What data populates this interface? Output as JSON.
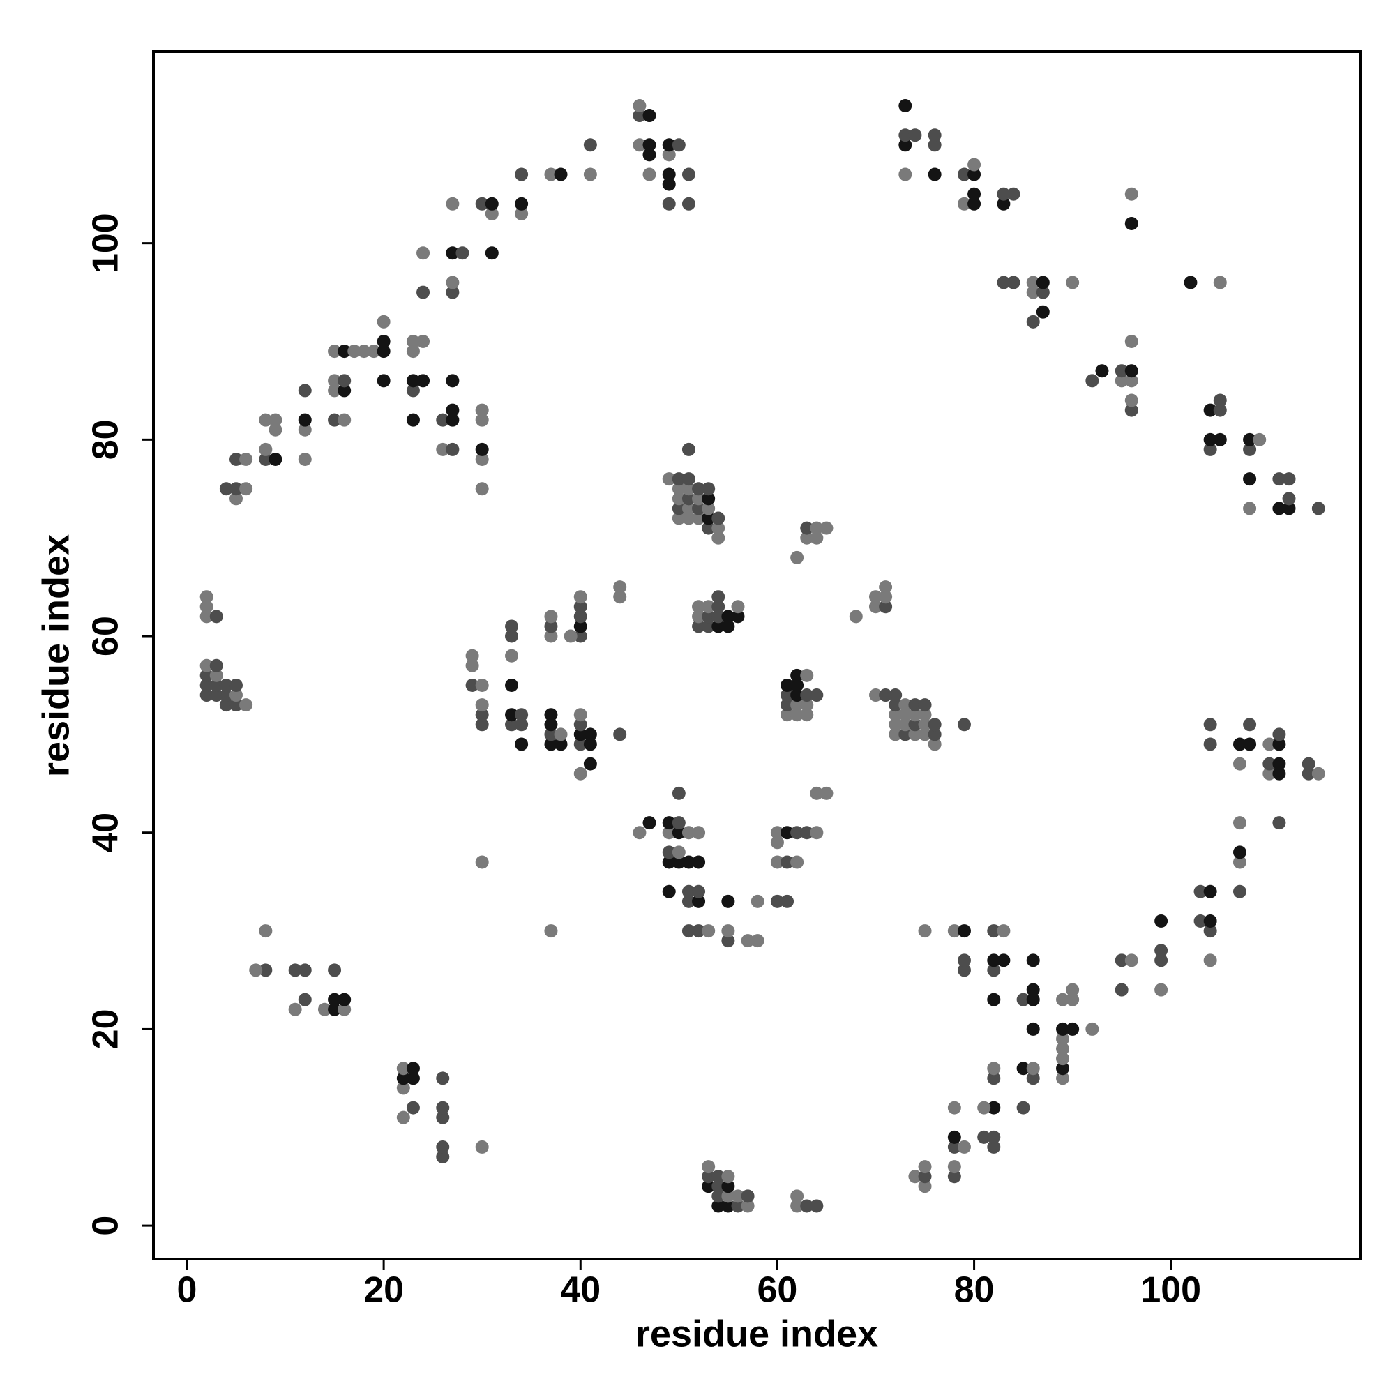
{
  "chart_data": {
    "type": "scatter",
    "xlabel": "residue index",
    "ylabel": "residue index",
    "xlim": [
      -3.4,
      119.3
    ],
    "ylim": [
      -3.4,
      119.5
    ],
    "xticks": [
      0,
      20,
      40,
      60,
      80,
      100
    ],
    "yticks": [
      0,
      20,
      40,
      60,
      80,
      100
    ],
    "x": [
      4,
      5,
      5,
      5,
      6,
      6,
      8,
      8,
      8,
      9,
      9,
      9,
      12,
      12,
      12,
      12,
      15,
      15,
      15,
      15,
      16,
      16,
      16,
      16,
      17,
      18,
      19,
      20,
      20,
      20,
      20,
      23,
      23,
      23,
      23,
      23,
      24,
      24,
      24,
      24,
      26,
      26,
      27,
      27,
      27,
      27,
      27,
      27,
      27,
      27,
      28,
      30,
      30,
      30,
      30,
      30,
      30,
      31,
      31,
      31,
      34,
      34,
      34,
      37,
      38,
      41,
      41,
      46,
      46,
      46,
      47,
      47,
      47,
      47,
      49,
      49,
      49,
      49,
      49,
      50,
      51,
      51,
      73,
      73,
      73,
      73,
      74,
      76,
      76,
      76,
      79,
      79,
      80,
      80,
      80,
      80,
      83,
      83,
      84,
      83,
      84,
      86,
      86,
      86,
      87,
      87,
      87,
      90,
      96,
      96,
      92,
      93,
      95,
      95,
      96,
      96,
      96,
      96,
      96,
      102,
      105,
      104,
      104,
      104,
      105,
      105,
      105,
      108,
      108,
      108,
      108,
      109,
      111,
      111,
      112,
      112,
      112,
      115,
      2,
      2,
      2,
      2,
      2,
      2,
      2,
      3,
      3,
      3,
      3,
      3,
      4,
      4,
      4,
      5,
      5,
      5,
      6,
      29,
      29,
      29,
      30,
      30,
      30,
      30,
      30,
      33,
      33,
      33,
      33,
      33,
      33,
      34,
      34,
      34,
      37,
      37,
      37,
      37,
      37,
      37,
      37,
      38,
      38,
      40,
      40,
      40,
      40,
      40,
      40,
      40,
      40,
      40,
      40,
      39,
      41,
      41,
      41,
      44,
      44,
      44,
      37,
      49,
      50,
      50,
      50,
      50,
      50,
      51,
      51,
      51,
      51,
      51,
      51,
      52,
      52,
      52,
      52,
      53,
      53,
      53,
      53,
      53,
      54,
      54,
      54,
      52,
      52,
      52,
      53,
      53,
      53,
      54,
      54,
      54,
      54,
      55,
      55,
      56,
      56,
      62,
      63,
      63,
      64,
      64,
      65,
      68,
      70,
      70,
      71,
      71,
      71,
      61,
      61,
      61,
      61,
      62,
      62,
      62,
      62,
      62,
      63,
      63,
      63,
      63,
      64,
      70,
      71,
      72,
      72,
      72,
      72,
      72,
      73,
      73,
      73,
      73,
      74,
      74,
      74,
      74,
      75,
      75,
      75,
      75,
      76,
      76,
      76,
      79,
      64,
      65,
      46,
      47,
      49,
      49,
      49,
      49,
      49,
      50,
      50,
      50,
      50,
      50,
      51,
      51,
      51,
      51,
      51,
      52,
      52,
      52,
      52,
      52,
      53,
      55,
      55,
      55,
      57,
      58,
      58,
      60,
      60,
      60,
      60,
      61,
      61,
      61,
      62,
      62,
      63,
      64,
      75,
      78,
      79,
      79,
      79,
      82,
      82,
      82,
      82,
      83,
      83,
      85,
      86,
      86,
      86,
      86,
      89,
      89,
      89,
      89,
      89,
      89,
      89,
      90,
      90,
      90,
      92,
      85,
      85,
      86,
      86,
      82,
      82,
      82,
      81,
      81,
      82,
      82,
      78,
      78,
      78,
      79,
      78,
      78,
      74,
      75,
      75,
      75,
      95,
      95,
      96,
      99,
      99,
      99,
      99,
      103,
      103,
      104,
      104,
      104,
      104,
      107,
      107,
      107,
      107,
      104,
      104,
      107,
      107,
      108,
      108,
      110,
      110,
      110,
      111,
      111,
      111,
      111,
      111,
      114,
      114,
      115,
      8,
      8,
      7,
      11,
      11,
      12,
      12,
      14,
      15,
      15,
      15,
      16,
      16,
      22,
      22,
      22,
      22,
      23,
      23,
      23,
      26,
      26,
      26,
      26,
      26,
      30,
      53,
      53,
      53,
      54,
      54,
      54,
      54,
      55,
      55,
      55,
      55,
      56,
      56,
      57,
      57,
      62,
      62,
      63,
      64
    ],
    "values": [
      75,
      74,
      75,
      78,
      75,
      78,
      78,
      79,
      82,
      78,
      81,
      82,
      78,
      81,
      82,
      85,
      82,
      85,
      86,
      89,
      82,
      85,
      86,
      89,
      89,
      89,
      89,
      86,
      89,
      90,
      92,
      82,
      85,
      86,
      89,
      90,
      86,
      90,
      95,
      99,
      79,
      82,
      79,
      82,
      83,
      86,
      95,
      96,
      99,
      104,
      99,
      75,
      78,
      79,
      82,
      83,
      104,
      99,
      103,
      104,
      103,
      104,
      107,
      107,
      107,
      107,
      110,
      110,
      113,
      114,
      107,
      109,
      110,
      113,
      104,
      106,
      107,
      109,
      110,
      110,
      104,
      107,
      107,
      110,
      111,
      114,
      111,
      107,
      110,
      111,
      104,
      107,
      104,
      105,
      107,
      108,
      104,
      105,
      105,
      96,
      96,
      92,
      95,
      96,
      93,
      95,
      96,
      96,
      102,
      105,
      86,
      87,
      86,
      87,
      83,
      84,
      86,
      87,
      90,
      96,
      96,
      79,
      80,
      83,
      80,
      83,
      84,
      73,
      76,
      79,
      80,
      80,
      73,
      76,
      73,
      74,
      76,
      73,
      54,
      55,
      56,
      57,
      62,
      63,
      64,
      54,
      55,
      56,
      57,
      62,
      53,
      54,
      55,
      53,
      54,
      55,
      53,
      55,
      57,
      58,
      51,
      52,
      53,
      55,
      37,
      51,
      52,
      55,
      58,
      60,
      61,
      49,
      51,
      52,
      49,
      50,
      51,
      52,
      60,
      61,
      62,
      49,
      50,
      46,
      49,
      50,
      51,
      52,
      60,
      61,
      62,
      63,
      64,
      60,
      47,
      49,
      50,
      50,
      64,
      65,
      30,
      76,
      72,
      73,
      74,
      75,
      76,
      72,
      73,
      74,
      75,
      76,
      79,
      72,
      73,
      74,
      75,
      71,
      72,
      73,
      74,
      75,
      70,
      71,
      72,
      61,
      62,
      63,
      61,
      62,
      63,
      61,
      62,
      63,
      64,
      61,
      62,
      62,
      63,
      68,
      70,
      71,
      70,
      71,
      71,
      62,
      63,
      64,
      63,
      64,
      65,
      52,
      53,
      54,
      55,
      52,
      53,
      54,
      55,
      56,
      52,
      53,
      54,
      56,
      54,
      54,
      54,
      50,
      51,
      52,
      53,
      54,
      50,
      51,
      52,
      53,
      50,
      51,
      52,
      53,
      50,
      51,
      52,
      53,
      49,
      50,
      51,
      51,
      44,
      44,
      40,
      41,
      34,
      37,
      38,
      40,
      41,
      37,
      38,
      40,
      41,
      44,
      33,
      34,
      37,
      40,
      30,
      30,
      33,
      34,
      37,
      40,
      30,
      29,
      30,
      33,
      29,
      29,
      33,
      33,
      37,
      39,
      40,
      33,
      37,
      40,
      37,
      40,
      40,
      40,
      30,
      30,
      30,
      26,
      27,
      23,
      26,
      27,
      30,
      27,
      30,
      23,
      20,
      23,
      24,
      27,
      15,
      16,
      17,
      18,
      19,
      20,
      23,
      20,
      23,
      24,
      20,
      12,
      16,
      15,
      16,
      12,
      15,
      16,
      9,
      12,
      8,
      9,
      12,
      8,
      9,
      8,
      5,
      6,
      5,
      4,
      5,
      6,
      24,
      27,
      27,
      24,
      27,
      28,
      31,
      31,
      34,
      27,
      30,
      31,
      34,
      34,
      37,
      38,
      41,
      49,
      51,
      47,
      49,
      49,
      51,
      46,
      47,
      49,
      41,
      46,
      47,
      49,
      50,
      46,
      47,
      46,
      26,
      30,
      26,
      22,
      26,
      23,
      26,
      22,
      22,
      23,
      26,
      22,
      23,
      11,
      14,
      15,
      16,
      12,
      15,
      16,
      7,
      8,
      11,
      12,
      15,
      8,
      4,
      5,
      6,
      2,
      3,
      4,
      5,
      2,
      3,
      4,
      5,
      2,
      3,
      2,
      3,
      2,
      3,
      2,
      2
    ],
    "colors": [
      "#4d4d4d",
      "#7a7a7a",
      "#4d4d4d",
      "#4d4d4d",
      "#7a7a7a",
      "#7a7a7a",
      "#4d4d4d",
      "#7a7a7a",
      "#7a7a7a",
      "#141414",
      "#7a7a7a",
      "#7a7a7a",
      "#7a7a7a",
      "#7a7a7a",
      "#141414",
      "#4d4d4d",
      "#4d4d4d",
      "#7a7a7a",
      "#7a7a7a",
      "#7a7a7a",
      "#7a7a7a",
      "#141414",
      "#4d4d4d",
      "#141414",
      "#7a7a7a",
      "#7a7a7a",
      "#7a7a7a",
      "#141414",
      "#141414",
      "#141414",
      "#7a7a7a",
      "#141414",
      "#4d4d4d",
      "#141414",
      "#7a7a7a",
      "#7a7a7a",
      "#141414",
      "#7a7a7a",
      "#4d4d4d",
      "#7a7a7a",
      "#7a7a7a",
      "#4d4d4d",
      "#4d4d4d",
      "#141414",
      "#141414",
      "#141414",
      "#4d4d4d",
      "#7a7a7a",
      "#141414",
      "#7a7a7a",
      "#4d4d4d",
      "#7a7a7a",
      "#7a7a7a",
      "#141414",
      "#7a7a7a",
      "#7a7a7a",
      "#4d4d4d",
      "#141414",
      "#7a7a7a",
      "#141414",
      "#7a7a7a",
      "#141414",
      "#4d4d4d",
      "#7a7a7a",
      "#141414",
      "#7a7a7a",
      "#4d4d4d",
      "#7a7a7a",
      "#4d4d4d",
      "#7a7a7a",
      "#7a7a7a",
      "#141414",
      "#141414",
      "#141414",
      "#4d4d4d",
      "#141414",
      "#141414",
      "#7a7a7a",
      "#141414",
      "#4d4d4d",
      "#4d4d4d",
      "#4d4d4d",
      "#7a7a7a",
      "#141414",
      "#4d4d4d",
      "#141414",
      "#4d4d4d",
      "#141414",
      "#4d4d4d",
      "#4d4d4d",
      "#7a7a7a",
      "#4d4d4d",
      "#141414",
      "#141414",
      "#141414",
      "#7a7a7a",
      "#141414",
      "#4d4d4d",
      "#4d4d4d",
      "#4d4d4d",
      "#4d4d4d",
      "#4d4d4d",
      "#7a7a7a",
      "#7a7a7a",
      "#141414",
      "#4d4d4d",
      "#141414",
      "#7a7a7a",
      "#141414",
      "#7a7a7a",
      "#4d4d4d",
      "#141414",
      "#7a7a7a",
      "#4d4d4d",
      "#4d4d4d",
      "#7a7a7a",
      "#7a7a7a",
      "#141414",
      "#7a7a7a",
      "#141414",
      "#7a7a7a",
      "#4d4d4d",
      "#141414",
      "#141414",
      "#141414",
      "#4d4d4d",
      "#4d4d4d",
      "#7a7a7a",
      "#141414",
      "#4d4d4d",
      "#141414",
      "#7a7a7a",
      "#141414",
      "#4d4d4d",
      "#141414",
      "#4d4d4d",
      "#4d4d4d",
      "#4d4d4d",
      "#4d4d4d",
      "#4d4d4d",
      "#4d4d4d",
      "#7a7a7a",
      "#7a7a7a",
      "#7a7a7a",
      "#7a7a7a",
      "#4d4d4d",
      "#4d4d4d",
      "#7a7a7a",
      "#4d4d4d",
      "#4d4d4d",
      "#4d4d4d",
      "#4d4d4d",
      "#4d4d4d",
      "#4d4d4d",
      "#7a7a7a",
      "#4d4d4d",
      "#7a7a7a",
      "#4d4d4d",
      "#7a7a7a",
      "#7a7a7a",
      "#4d4d4d",
      "#4d4d4d",
      "#7a7a7a",
      "#7a7a7a",
      "#7a7a7a",
      "#4d4d4d",
      "#141414",
      "#141414",
      "#7a7a7a",
      "#4d4d4d",
      "#4d4d4d",
      "#141414",
      "#4d4d4d",
      "#4d4d4d",
      "#141414",
      "#4d4d4d",
      "#141414",
      "#141414",
      "#7a7a7a",
      "#4d4d4d",
      "#7a7a7a",
      "#141414",
      "#7a7a7a",
      "#7a7a7a",
      "#4d4d4d",
      "#141414",
      "#4d4d4d",
      "#7a7a7a",
      "#4d4d4d",
      "#141414",
      "#4d4d4d",
      "#4d4d4d",
      "#7a7a7a",
      "#7a7a7a",
      "#141414",
      "#141414",
      "#141414",
      "#4d4d4d",
      "#7a7a7a",
      "#7a7a7a",
      "#7a7a7a",
      "#7a7a7a",
      "#7a7a7a",
      "#4d4d4d",
      "#7a7a7a",
      "#7a7a7a",
      "#4d4d4d",
      "#7a7a7a",
      "#7a7a7a",
      "#4d4d4d",
      "#7a7a7a",
      "#4d4d4d",
      "#4d4d4d",
      "#7a7a7a",
      "#4d4d4d",
      "#7a7a7a",
      "#4d4d4d",
      "#4d4d4d",
      "#141414",
      "#7a7a7a",
      "#141414",
      "#4d4d4d",
      "#7a7a7a",
      "#7a7a7a",
      "#4d4d4d",
      "#4d4d4d",
      "#7a7a7a",
      "#7a7a7a",
      "#4d4d4d",
      "#4d4d4d",
      "#7a7a7a",
      "#141414",
      "#4d4d4d",
      "#4d4d4d",
      "#4d4d4d",
      "#141414",
      "#141414",
      "#141414",
      "#7a7a7a",
      "#7a7a7a",
      "#7a7a7a",
      "#4d4d4d",
      "#7a7a7a",
      "#7a7a7a",
      "#7a7a7a",
      "#7a7a7a",
      "#7a7a7a",
      "#7a7a7a",
      "#4d4d4d",
      "#7a7a7a",
      "#7a7a7a",
      "#7a7a7a",
      "#4d4d4d",
      "#4d4d4d",
      "#141414",
      "#7a7a7a",
      "#7a7a7a",
      "#141414",
      "#141414",
      "#141414",
      "#7a7a7a",
      "#7a7a7a",
      "#4d4d4d",
      "#7a7a7a",
      "#4d4d4d",
      "#7a7a7a",
      "#4d4d4d",
      "#7a7a7a",
      "#7a7a7a",
      "#7a7a7a",
      "#4d4d4d",
      "#4d4d4d",
      "#4d4d4d",
      "#7a7a7a",
      "#7a7a7a",
      "#7a7a7a",
      "#7a7a7a",
      "#4d4d4d",
      "#7a7a7a",
      "#4d4d4d",
      "#7a7a7a",
      "#7a7a7a",
      "#7a7a7a",
      "#4d4d4d",
      "#7a7a7a",
      "#4d4d4d",
      "#4d4d4d",
      "#4d4d4d",
      "#7a7a7a",
      "#7a7a7a",
      "#7a7a7a",
      "#141414",
      "#141414",
      "#141414",
      "#4d4d4d",
      "#7a7a7a",
      "#141414",
      "#141414",
      "#7a7a7a",
      "#141414",
      "#4d4d4d",
      "#4d4d4d",
      "#4d4d4d",
      "#4d4d4d",
      "#141414",
      "#7a7a7a",
      "#4d4d4d",
      "#4d4d4d",
      "#141414",
      "#4d4d4d",
      "#141414",
      "#7a7a7a",
      "#7a7a7a",
      "#4d4d4d",
      "#7a7a7a",
      "#141414",
      "#7a7a7a",
      "#7a7a7a",
      "#7a7a7a",
      "#4d4d4d",
      "#7a7a7a",
      "#7a7a7a",
      "#7a7a7a",
      "#4d4d4d",
      "#4d4d4d",
      "#141414",
      "#7a7a7a",
      "#4d4d4d",
      "#4d4d4d",
      "#7a7a7a",
      "#7a7a7a",
      "#7a7a7a",
      "#141414",
      "#4d4d4d",
      "#4d4d4d",
      "#141414",
      "#4d4d4d",
      "#141414",
      "#4d4d4d",
      "#141414",
      "#7a7a7a",
      "#4d4d4d",
      "#141414",
      "#141414",
      "#141414",
      "#141414",
      "#7a7a7a",
      "#141414",
      "#7a7a7a",
      "#7a7a7a",
      "#7a7a7a",
      "#141414",
      "#7a7a7a",
      "#141414",
      "#7a7a7a",
      "#7a7a7a",
      "#7a7a7a",
      "#4d4d4d",
      "#141414",
      "#4d4d4d",
      "#7a7a7a",
      "#141414",
      "#4d4d4d",
      "#7a7a7a",
      "#4d4d4d",
      "#7a7a7a",
      "#4d4d4d",
      "#4d4d4d",
      "#7a7a7a",
      "#4d4d4d",
      "#141414",
      "#7a7a7a",
      "#4d4d4d",
      "#7a7a7a",
      "#7a7a7a",
      "#7a7a7a",
      "#4d4d4d",
      "#7a7a7a",
      "#4d4d4d",
      "#4d4d4d",
      "#7a7a7a",
      "#7a7a7a",
      "#4d4d4d",
      "#4d4d4d",
      "#141414",
      "#4d4d4d",
      "#4d4d4d",
      "#7a7a7a",
      "#4d4d4d",
      "#141414",
      "#141414",
      "#4d4d4d",
      "#7a7a7a",
      "#141414",
      "#7a7a7a",
      "#4d4d4d",
      "#4d4d4d",
      "#7a7a7a",
      "#141414",
      "#141414",
      "#4d4d4d",
      "#7a7a7a",
      "#4d4d4d",
      "#7a7a7a",
      "#4d4d4d",
      "#141414",
      "#141414",
      "#141414",
      "#4d4d4d",
      "#4d4d4d",
      "#4d4d4d",
      "#7a7a7a",
      "#4d4d4d",
      "#7a7a7a",
      "#7a7a7a",
      "#7a7a7a",
      "#4d4d4d",
      "#4d4d4d",
      "#4d4d4d",
      "#7a7a7a",
      "#141414",
      "#141414",
      "#4d4d4d",
      "#7a7a7a",
      "#141414",
      "#7a7a7a",
      "#7a7a7a",
      "#141414",
      "#7a7a7a",
      "#4d4d4d",
      "#141414",
      "#141414",
      "#4d4d4d",
      "#4d4d4d",
      "#4d4d4d",
      "#4d4d4d",
      "#4d4d4d",
      "#7a7a7a",
      "#141414",
      "#4d4d4d",
      "#7a7a7a",
      "#141414",
      "#4d4d4d",
      "#4d4d4d",
      "#4d4d4d",
      "#141414",
      "#7a7a7a",
      "#141414",
      "#7a7a7a",
      "#4d4d4d",
      "#7a7a7a",
      "#7a7a7a",
      "#4d4d4d",
      "#7a7a7a",
      "#7a7a7a",
      "#4d4d4d",
      "#4d4d4d"
    ]
  }
}
